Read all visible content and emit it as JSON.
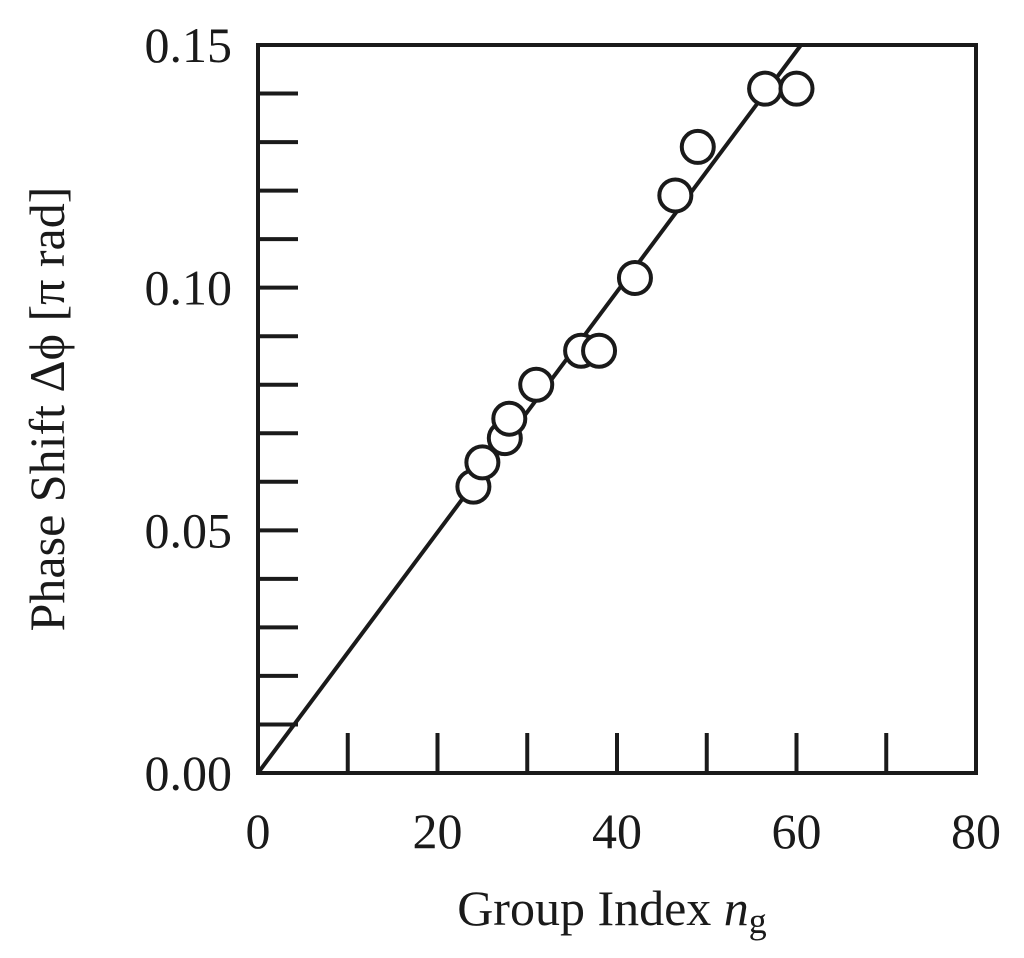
{
  "chart_data": {
    "type": "scatter",
    "xlabel_text": "Group Index ",
    "xlabel_var": "n",
    "xlabel_sub": "g",
    "ylabel": "Phase Shift Δϕ [π rad]",
    "xlim": [
      0,
      80
    ],
    "ylim": [
      0,
      0.15
    ],
    "x_tick_labels": [
      "0",
      "20",
      "40",
      "60",
      "80"
    ],
    "x_tick_values": [
      0,
      20,
      40,
      60,
      80
    ],
    "x_minor_ticks": [
      10,
      30,
      50,
      70
    ],
    "y_tick_labels": [
      "0.00",
      "0.05",
      "0.10",
      "0.15"
    ],
    "y_tick_values": [
      0,
      0.05,
      0.1,
      0.15
    ],
    "y_minor_step": 0.01,
    "grid": false,
    "series": [
      {
        "marker": "open-circle",
        "points": [
          {
            "x": 24.0,
            "y": 0.059
          },
          {
            "x": 25.0,
            "y": 0.064
          },
          {
            "x": 27.5,
            "y": 0.069
          },
          {
            "x": 28.0,
            "y": 0.073
          },
          {
            "x": 31.0,
            "y": 0.08
          },
          {
            "x": 36.0,
            "y": 0.087
          },
          {
            "x": 38.0,
            "y": 0.087
          },
          {
            "x": 42.0,
            "y": 0.102
          },
          {
            "x": 46.5,
            "y": 0.119
          },
          {
            "x": 49.0,
            "y": 0.129
          },
          {
            "x": 56.5,
            "y": 0.141
          },
          {
            "x": 60.0,
            "y": 0.141
          }
        ]
      }
    ],
    "fit_line": {
      "from": {
        "x": 0,
        "y": 0
      },
      "to": {
        "x": 60.5,
        "y": 0.15
      }
    }
  }
}
